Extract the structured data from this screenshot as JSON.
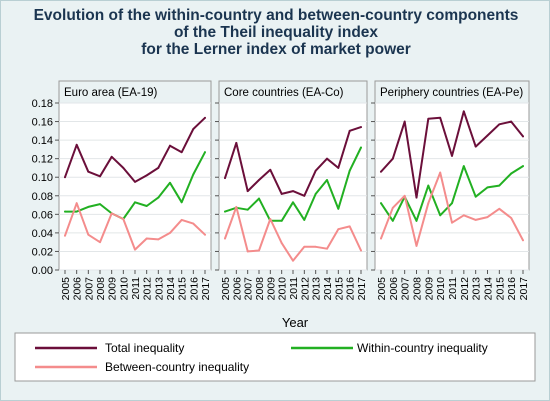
{
  "title_lines": [
    "Evolution of the within-country and between-country components",
    "of the Theil inequality index",
    "for the Lerner index of market power"
  ],
  "chart_data": {
    "type": "line",
    "xlabel": "Year",
    "ylabel": "",
    "ylim": [
      0,
      0.18
    ],
    "yticks": [
      "0.00",
      "0.02",
      "0.04",
      "0.06",
      "0.08",
      "0.10",
      "0.12",
      "0.14",
      "0.16",
      "0.18"
    ],
    "x": [
      "2005",
      "2006",
      "2007",
      "2008",
      "2009",
      "2010",
      "2011",
      "2012",
      "2013",
      "2014",
      "2015",
      "2016",
      "2017"
    ],
    "grid": true,
    "legend": "bottom",
    "colors": {
      "Total inequality": "#6b0f3a",
      "Within-country inequality": "#22b022",
      "Between-country inequality": "#f48c8c"
    },
    "panels": [
      {
        "title": "Euro area (EA-19)",
        "series": [
          {
            "name": "Total inequality",
            "values": [
              0.1,
              0.135,
              0.106,
              0.101,
              0.122,
              0.11,
              0.095,
              0.102,
              0.11,
              0.134,
              0.127,
              0.152,
              0.164
            ]
          },
          {
            "name": "Within-country inequality",
            "values": [
              0.063,
              0.063,
              0.068,
              0.071,
              0.061,
              0.055,
              0.073,
              0.069,
              0.078,
              0.094,
              0.073,
              0.103,
              0.127
            ]
          },
          {
            "name": "Between-country inequality",
            "values": [
              0.037,
              0.072,
              0.038,
              0.03,
              0.061,
              0.055,
              0.022,
              0.034,
              0.033,
              0.04,
              0.054,
              0.05,
              0.038
            ]
          }
        ]
      },
      {
        "title": "Core countries (EA-Co)",
        "series": [
          {
            "name": "Total inequality",
            "values": [
              0.099,
              0.137,
              0.085,
              0.097,
              0.108,
              0.082,
              0.085,
              0.08,
              0.107,
              0.12,
              0.11,
              0.15,
              0.154
            ]
          },
          {
            "name": "Within-country inequality",
            "values": [
              0.063,
              0.067,
              0.065,
              0.077,
              0.053,
              0.053,
              0.073,
              0.054,
              0.082,
              0.097,
              0.066,
              0.107,
              0.132
            ]
          },
          {
            "name": "Between-country inequality",
            "values": [
              0.034,
              0.068,
              0.02,
              0.021,
              0.055,
              0.029,
              0.01,
              0.025,
              0.025,
              0.023,
              0.044,
              0.047,
              0.021
            ]
          }
        ]
      },
      {
        "title": "Periphery countries (EA-Pe)",
        "series": [
          {
            "name": "Total inequality",
            "values": [
              0.106,
              0.12,
              0.16,
              0.078,
              0.163,
              0.164,
              0.123,
              0.171,
              0.133,
              0.145,
              0.157,
              0.16,
              0.144
            ]
          },
          {
            "name": "Within-country inequality",
            "values": [
              0.072,
              0.053,
              0.079,
              0.053,
              0.091,
              0.059,
              0.072,
              0.112,
              0.079,
              0.089,
              0.091,
              0.104,
              0.112
            ]
          },
          {
            "name": "Between-country inequality",
            "values": [
              0.034,
              0.067,
              0.08,
              0.026,
              0.072,
              0.105,
              0.051,
              0.059,
              0.054,
              0.057,
              0.066,
              0.056,
              0.032
            ]
          }
        ]
      }
    ]
  }
}
